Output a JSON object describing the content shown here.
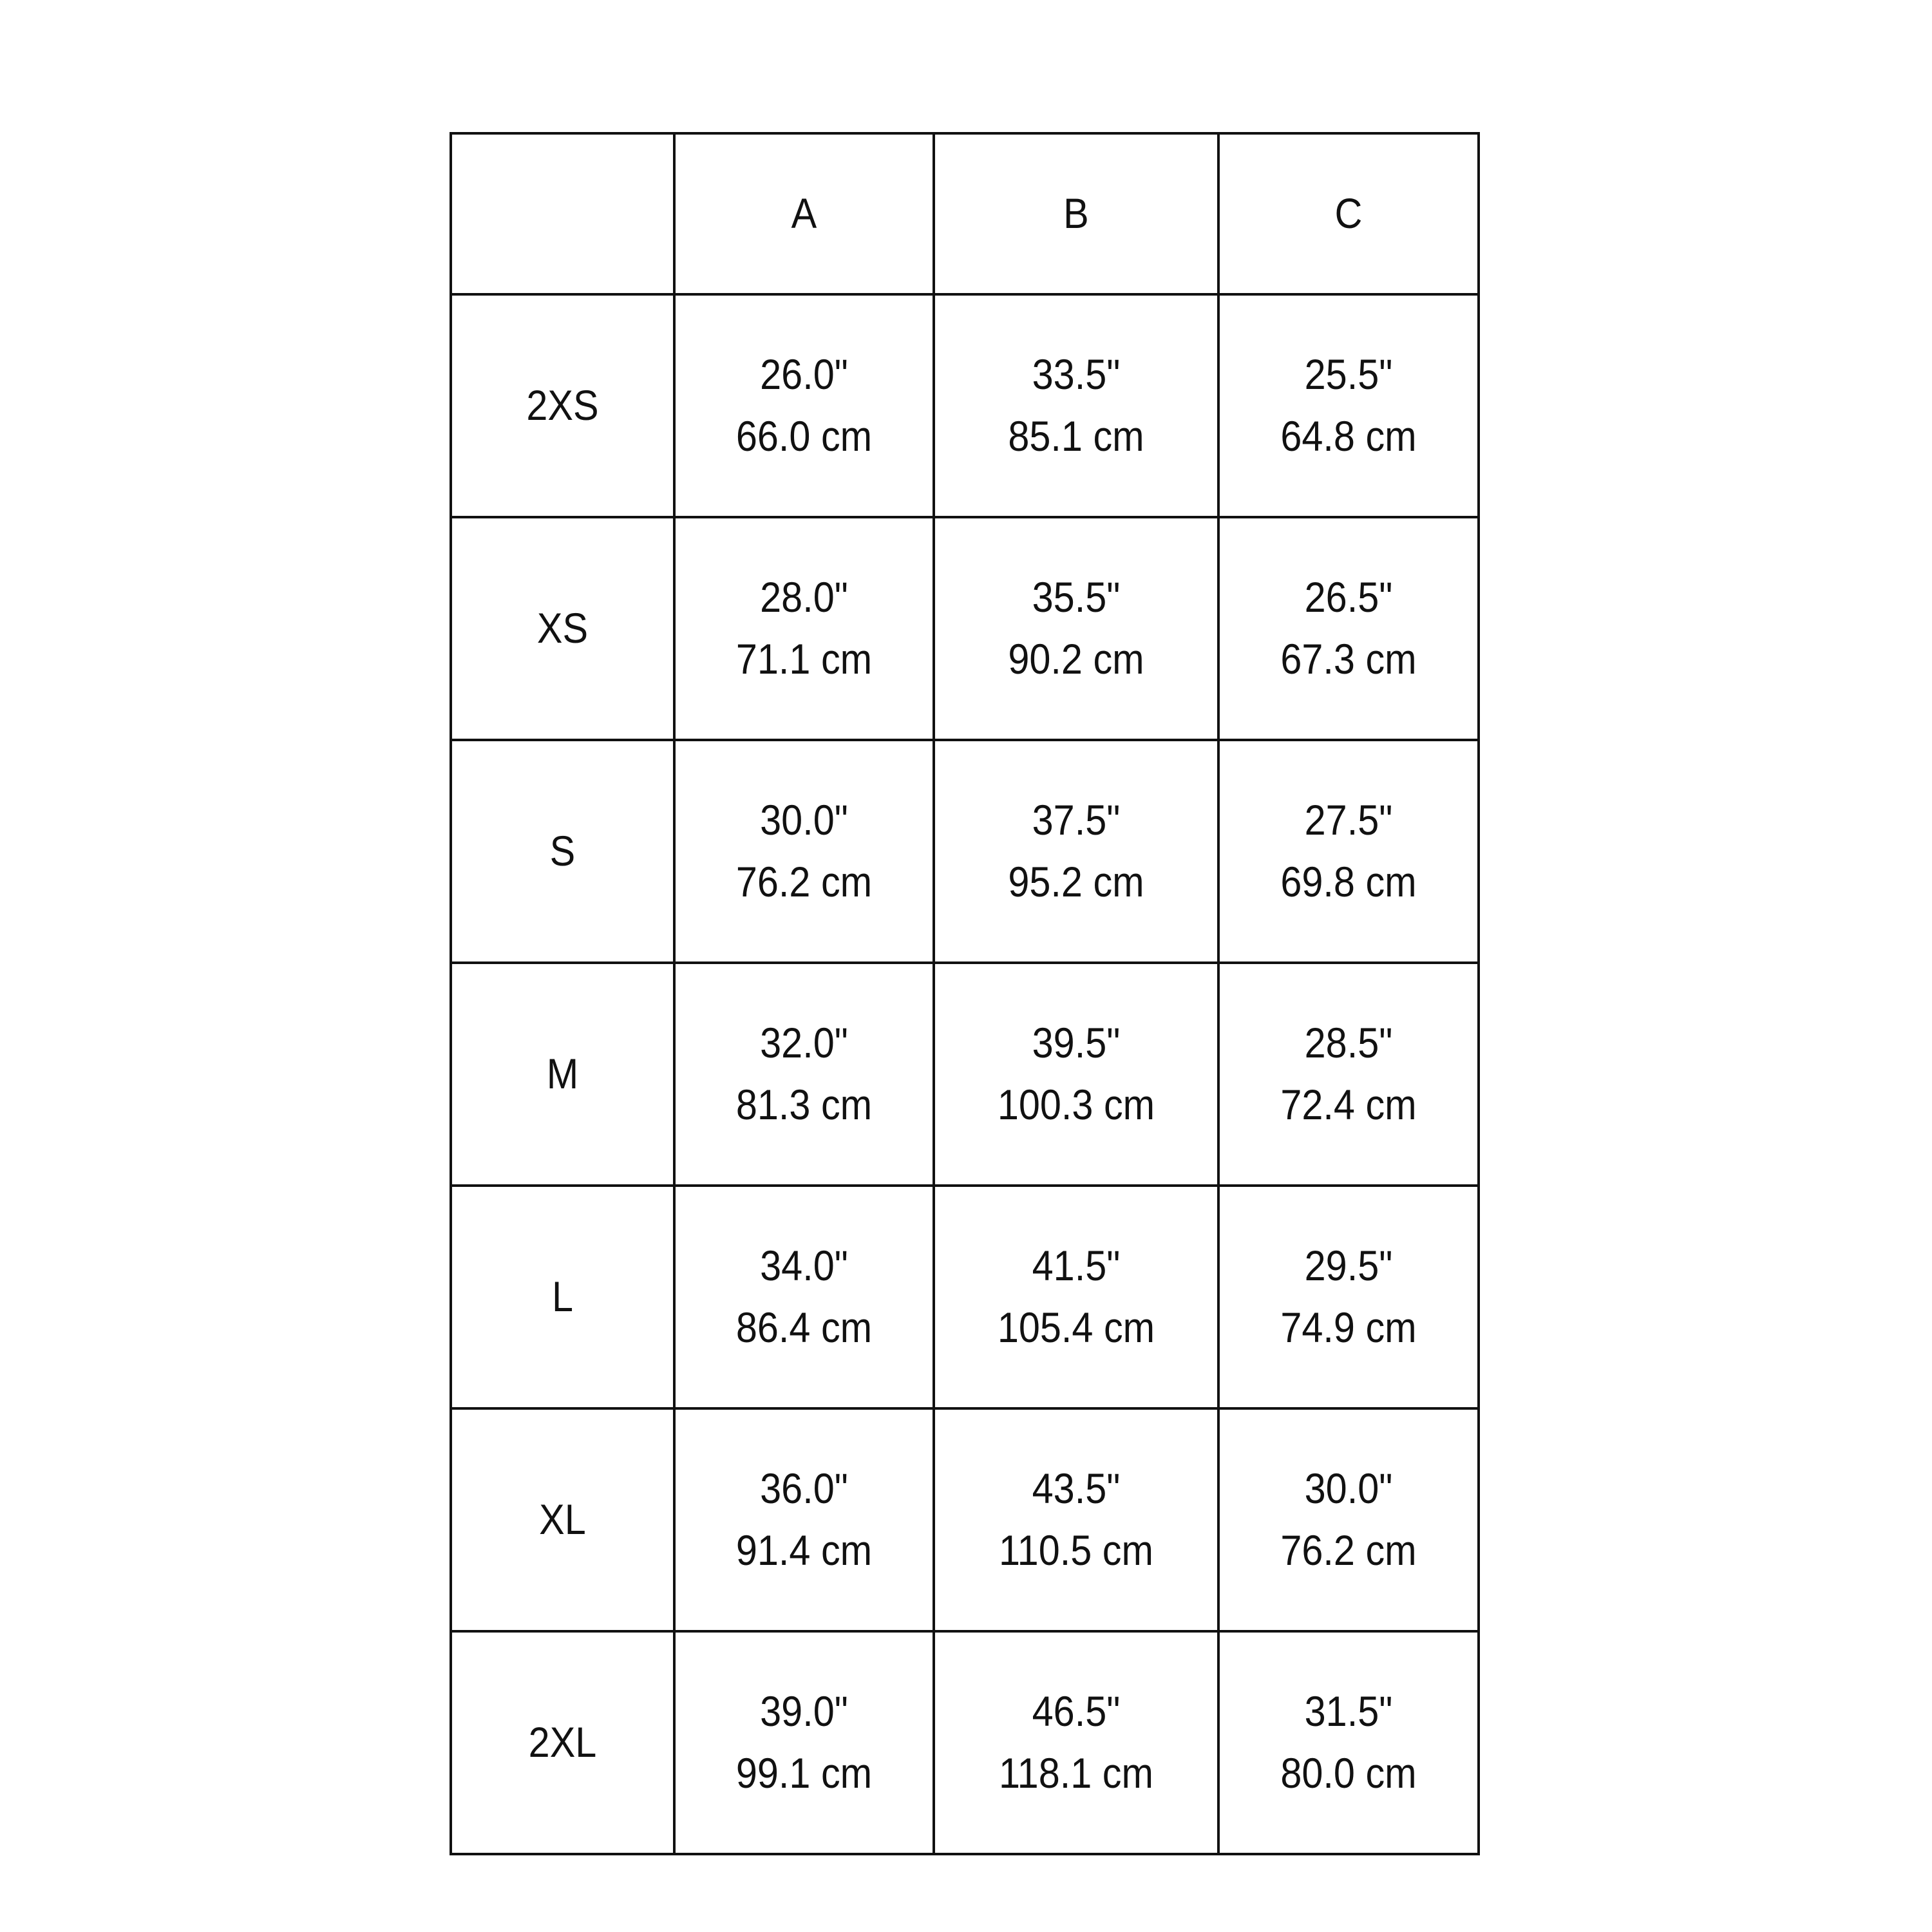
{
  "table": {
    "columns": [
      "",
      "A",
      "B",
      "C"
    ],
    "rows": [
      {
        "size": "2XS",
        "cells": [
          [
            "26.0\"",
            "66.0 cm"
          ],
          [
            "33.5\"",
            "85.1 cm"
          ],
          [
            "25.5\"",
            "64.8 cm"
          ]
        ]
      },
      {
        "size": "XS",
        "cells": [
          [
            "28.0\"",
            "71.1 cm"
          ],
          [
            "35.5\"",
            "90.2 cm"
          ],
          [
            "26.5\"",
            "67.3 cm"
          ]
        ]
      },
      {
        "size": "S",
        "cells": [
          [
            "30.0\"",
            "76.2 cm"
          ],
          [
            "37.5\"",
            "95.2 cm"
          ],
          [
            "27.5\"",
            "69.8 cm"
          ]
        ]
      },
      {
        "size": "M",
        "cells": [
          [
            "32.0\"",
            "81.3 cm"
          ],
          [
            "39.5\"",
            "100.3 cm"
          ],
          [
            "28.5\"",
            "72.4 cm"
          ]
        ]
      },
      {
        "size": "L",
        "cells": [
          [
            "34.0\"",
            "86.4 cm"
          ],
          [
            "41.5\"",
            "105.4 cm"
          ],
          [
            "29.5\"",
            "74.9 cm"
          ]
        ]
      },
      {
        "size": "XL",
        "cells": [
          [
            "36.0\"",
            "91.4 cm"
          ],
          [
            "43.5\"",
            "110.5 cm"
          ],
          [
            "30.0\"",
            "76.2 cm"
          ]
        ]
      },
      {
        "size": "2XL",
        "cells": [
          [
            "39.0\"",
            "99.1 cm"
          ],
          [
            "46.5\"",
            "118.1 cm"
          ],
          [
            "31.5\"",
            "80.0 cm"
          ]
        ]
      }
    ]
  }
}
